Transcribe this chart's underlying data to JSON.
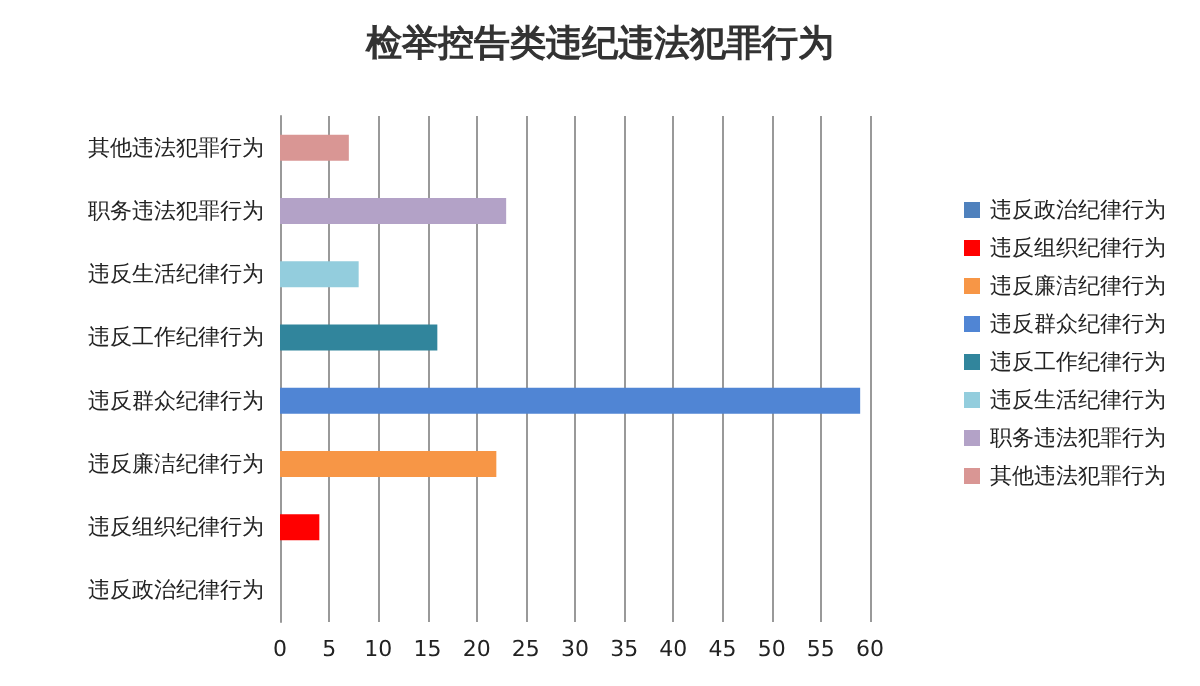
{
  "chart_data": {
    "type": "bar",
    "title": "检举控告类违纪违法犯罪行为",
    "orientation": "horizontal",
    "stacked": true,
    "categories": [
      "其他违法犯罪行为",
      "职务违法犯罪行为",
      "违反生活纪律行为",
      "违反工作纪律行为",
      "违反群众纪律行为",
      "违反廉洁纪律行为",
      "违反组织纪律行为",
      "违反政治纪律行为"
    ],
    "series": [
      {
        "name": "违反政治纪律行为",
        "color": "#4f81bd",
        "values": [
          null,
          null,
          null,
          null,
          null,
          null,
          null,
          0
        ]
      },
      {
        "name": "违反组织纪律行为",
        "color": "#ff0000",
        "values": [
          null,
          null,
          null,
          null,
          null,
          null,
          4,
          null
        ]
      },
      {
        "name": "违反廉洁纪律行为",
        "color": "#f79646",
        "values": [
          null,
          null,
          null,
          null,
          null,
          22,
          null,
          null
        ]
      },
      {
        "name": "违反群众纪律行为",
        "color": "#5085d4",
        "values": [
          null,
          null,
          null,
          null,
          59,
          null,
          null,
          null
        ]
      },
      {
        "name": "违反工作纪律行为",
        "color": "#31859c",
        "values": [
          null,
          null,
          null,
          16,
          null,
          null,
          null,
          null
        ]
      },
      {
        "name": "违反生活纪律行为",
        "color": "#93cddd",
        "values": [
          null,
          null,
          8,
          null,
          null,
          null,
          null,
          null
        ]
      },
      {
        "name": "职务违法犯罪行为",
        "color": "#b3a2c7",
        "values": [
          null,
          23,
          null,
          null,
          null,
          null,
          null,
          null
        ]
      },
      {
        "name": "其他违法犯罪行为",
        "color": "#d99694",
        "values": [
          7,
          null,
          null,
          null,
          null,
          null,
          null,
          null
        ]
      }
    ],
    "xlim": [
      0,
      60
    ],
    "xticks": [
      0,
      5,
      10,
      15,
      20,
      25,
      30,
      35,
      40,
      45,
      50,
      55,
      60
    ],
    "grid": "x",
    "legend": "right"
  }
}
